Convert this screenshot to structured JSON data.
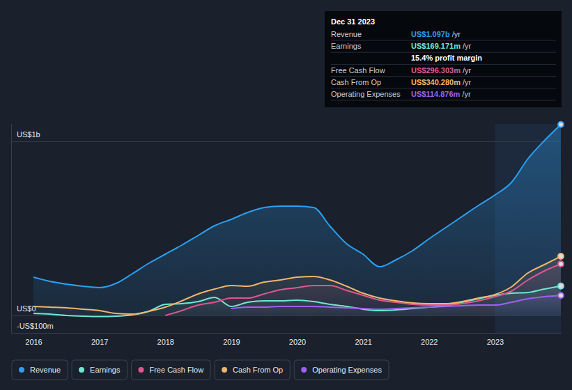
{
  "chart_data": {
    "type": "area",
    "x": [
      2016,
      2016.25,
      2016.5,
      2016.75,
      2017,
      2017.25,
      2017.5,
      2017.75,
      2018,
      2018.25,
      2018.5,
      2018.75,
      2019,
      2019.25,
      2019.5,
      2019.75,
      2020,
      2020.25,
      2020.5,
      2020.75,
      2021,
      2021.25,
      2021.5,
      2021.75,
      2022,
      2022.25,
      2022.5,
      2022.75,
      2023,
      2023.25,
      2023.5,
      2023.75,
      2024
    ],
    "series": [
      {
        "name": "Revenue",
        "color": "#2c9ff0",
        "values": [
          220,
          196,
          180,
          168,
          160,
          184,
          240,
          300,
          352,
          404,
          460,
          516,
          552,
          592,
          620,
          628,
          628,
          620,
          512,
          412,
          352,
          280,
          320,
          372,
          440,
          504,
          568,
          632,
          692,
          764,
          900,
          1004,
          1097
        ]
      },
      {
        "name": "Earnings",
        "color": "#6ee7d4",
        "values": [
          12,
          8,
          0,
          -4,
          -6,
          -4,
          4,
          24,
          64,
          68,
          80,
          104,
          52,
          76,
          84,
          84,
          88,
          80,
          64,
          52,
          36,
          28,
          32,
          40,
          48,
          56,
          76,
          96,
          116,
          128,
          132,
          152,
          169.171
        ]
      },
      {
        "name": "Free Cash Flow",
        "color": "#e0568f",
        "values": [
          null,
          null,
          null,
          null,
          null,
          null,
          null,
          null,
          0,
          28,
          60,
          76,
          100,
          100,
          124,
          148,
          160,
          172,
          172,
          144,
          116,
          88,
          76,
          64,
          60,
          60,
          68,
          84,
          108,
          140,
          204,
          256,
          296.303
        ]
      },
      {
        "name": "Cash From Op",
        "color": "#f1b46b",
        "values": [
          52,
          48,
          44,
          36,
          28,
          12,
          8,
          24,
          48,
          84,
          124,
          152,
          172,
          168,
          192,
          204,
          220,
          224,
          204,
          168,
          128,
          100,
          84,
          72,
          68,
          68,
          80,
          100,
          120,
          164,
          244,
          292,
          340.28
        ]
      },
      {
        "name": "Operating Expenses",
        "color": "#9f5ff5",
        "values": [
          null,
          null,
          null,
          null,
          null,
          null,
          null,
          null,
          null,
          null,
          null,
          null,
          40,
          48,
          48,
          52,
          52,
          52,
          48,
          44,
          40,
          36,
          40,
          44,
          48,
          52,
          56,
          60,
          60,
          76,
          96,
          108,
          114.876
        ]
      }
    ],
    "xlim": [
      2016,
      2024
    ],
    "xticks": [
      2016,
      2017,
      2018,
      2019,
      2020,
      2021,
      2022,
      2023
    ],
    "ylim": [
      -100,
      1100
    ],
    "yticks": [
      {
        "value": -100,
        "label": "-US$100m"
      },
      {
        "value": 0,
        "label": "US$0"
      },
      {
        "value": 1000,
        "label": "US$1b"
      }
    ],
    "grid": true,
    "legend": "bottom-left",
    "tooltip": {
      "date": "Dec 31 2023",
      "rows": [
        {
          "label": "Revenue",
          "value": "US$1.097b",
          "suffix": "/yr",
          "color": "#2c9ff0"
        },
        {
          "label": "Earnings",
          "value": "US$169.171m",
          "suffix": "/yr",
          "color": "#6ee7d4"
        },
        {
          "value": "15.4% profit margin",
          "color": "#ffffff"
        },
        {
          "label": "Free Cash Flow",
          "value": "US$296.303m",
          "suffix": "/yr",
          "color": "#e0568f"
        },
        {
          "label": "Cash From Op",
          "value": "US$340.280m",
          "suffix": "/yr",
          "color": "#f1b46b"
        },
        {
          "label": "Operating Expenses",
          "value": "US$114.876m",
          "suffix": "/yr",
          "color": "#9f5ff5"
        }
      ]
    }
  }
}
